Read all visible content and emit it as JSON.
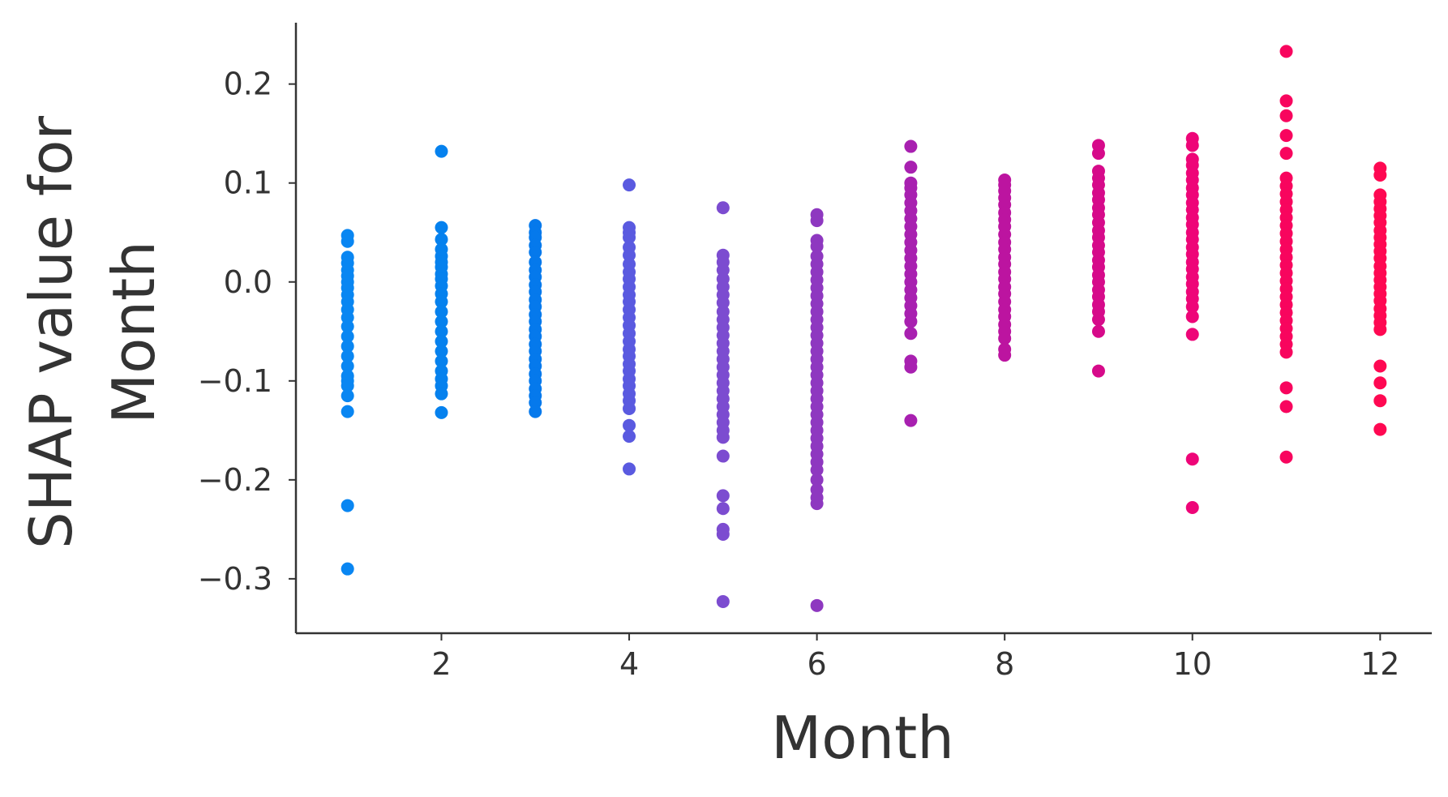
{
  "chart_data": {
    "type": "scatter",
    "title": "",
    "xlabel": "Month",
    "ylabel_lines": [
      "SHAP value for",
      "Month"
    ],
    "xlim": [
      0.45,
      12.55
    ],
    "ylim": [
      -0.355,
      0.262
    ],
    "xticks": [
      2,
      4,
      6,
      8,
      10,
      12
    ],
    "xtick_labels": [
      "2",
      "4",
      "6",
      "8",
      "10",
      "12"
    ],
    "yticks": [
      -0.3,
      -0.2,
      -0.1,
      0.0,
      0.1,
      0.2
    ],
    "ytick_labels": [
      "−0.3",
      "−0.2",
      "−0.1",
      "0.0",
      "0.1",
      "0.2"
    ],
    "grid": false,
    "color_scale": [
      "#008bfb",
      "#ff0052"
    ],
    "month_colors": {
      "1": "#0986f2",
      "2": "#0581ee",
      "3": "#0579ec",
      "4": "#5a5ae0",
      "5": "#7c4cd0",
      "6": "#8e38c0",
      "7": "#a820b0",
      "8": "#bc14a0",
      "9": "#d60a8a",
      "10": "#ee0578",
      "11": "#f8055e",
      "12": "#ff0852"
    },
    "series": [
      {
        "x": 1,
        "y": [
          0.047,
          0.041,
          0.025,
          0.019,
          0.012,
          0.006,
          0.0,
          -0.006,
          -0.013,
          -0.02,
          -0.028,
          -0.036,
          -0.045,
          -0.055,
          -0.065,
          -0.075,
          -0.085,
          -0.095,
          -0.1,
          -0.105,
          -0.115,
          -0.131,
          -0.226,
          -0.29
        ]
      },
      {
        "x": 2,
        "y": [
          0.132,
          0.055,
          0.043,
          0.033,
          0.026,
          0.02,
          0.015,
          0.008,
          0.003,
          -0.004,
          -0.012,
          -0.02,
          -0.03,
          -0.04,
          -0.05,
          -0.06,
          -0.07,
          -0.08,
          -0.09,
          -0.098,
          -0.105,
          -0.113,
          -0.132
        ]
      },
      {
        "x": 3,
        "y": [
          0.057,
          0.05,
          0.045,
          0.037,
          0.03,
          0.02,
          0.012,
          0.005,
          -0.003,
          -0.01,
          -0.018,
          -0.025,
          -0.033,
          -0.04,
          -0.048,
          -0.055,
          -0.063,
          -0.07,
          -0.078,
          -0.085,
          -0.093,
          -0.1,
          -0.108,
          -0.115,
          -0.122,
          -0.131
        ]
      },
      {
        "x": 4,
        "y": [
          0.098,
          0.055,
          0.05,
          0.045,
          0.035,
          0.027,
          0.018,
          0.01,
          0.003,
          -0.005,
          -0.013,
          -0.02,
          -0.028,
          -0.036,
          -0.044,
          -0.052,
          -0.06,
          -0.068,
          -0.075,
          -0.083,
          -0.09,
          -0.098,
          -0.105,
          -0.113,
          -0.12,
          -0.128,
          -0.145,
          -0.156,
          -0.189
        ]
      },
      {
        "x": 5,
        "y": [
          0.075,
          0.027,
          0.02,
          0.012,
          0.003,
          -0.005,
          -0.013,
          -0.021,
          -0.03,
          -0.038,
          -0.046,
          -0.054,
          -0.062,
          -0.07,
          -0.078,
          -0.086,
          -0.094,
          -0.102,
          -0.11,
          -0.118,
          -0.126,
          -0.134,
          -0.142,
          -0.15,
          -0.157,
          -0.176,
          -0.216,
          -0.229,
          -0.25,
          -0.255,
          -0.323
        ]
      },
      {
        "x": 6,
        "y": [
          0.068,
          0.062,
          0.042,
          0.036,
          0.026,
          0.018,
          0.01,
          0.002,
          -0.006,
          -0.014,
          -0.022,
          -0.03,
          -0.038,
          -0.046,
          -0.054,
          -0.062,
          -0.07,
          -0.078,
          -0.086,
          -0.094,
          -0.102,
          -0.11,
          -0.118,
          -0.126,
          -0.134,
          -0.142,
          -0.15,
          -0.158,
          -0.166,
          -0.174,
          -0.182,
          -0.19,
          -0.2,
          -0.21,
          -0.218,
          -0.224,
          -0.327
        ]
      },
      {
        "x": 7,
        "y": [
          0.137,
          0.116,
          0.1,
          0.095,
          0.088,
          0.08,
          0.072,
          0.064,
          0.056,
          0.048,
          0.04,
          0.032,
          0.024,
          0.016,
          0.008,
          0.0,
          -0.008,
          -0.016,
          -0.024,
          -0.032,
          -0.04,
          -0.052,
          -0.08,
          -0.086,
          -0.14
        ]
      },
      {
        "x": 8,
        "y": [
          0.103,
          0.098,
          0.092,
          0.085,
          0.078,
          0.07,
          0.063,
          0.056,
          0.048,
          0.04,
          0.033,
          0.025,
          0.018,
          0.01,
          0.003,
          -0.005,
          -0.012,
          -0.02,
          -0.028,
          -0.035,
          -0.043,
          -0.05,
          -0.057,
          -0.068,
          -0.074
        ]
      },
      {
        "x": 9,
        "y": [
          0.138,
          0.13,
          0.112,
          0.105,
          0.098,
          0.09,
          0.083,
          0.075,
          0.068,
          0.06,
          0.052,
          0.045,
          0.037,
          0.03,
          0.022,
          0.015,
          0.007,
          0.0,
          -0.008,
          -0.015,
          -0.023,
          -0.03,
          -0.038,
          -0.05,
          -0.09
        ]
      },
      {
        "x": 10,
        "y": [
          0.145,
          0.138,
          0.124,
          0.118,
          0.11,
          0.103,
          0.095,
          0.088,
          0.08,
          0.073,
          0.065,
          0.058,
          0.05,
          0.043,
          0.035,
          0.028,
          0.02,
          0.013,
          0.005,
          -0.002,
          -0.01,
          -0.017,
          -0.025,
          -0.035,
          -0.053,
          -0.179,
          -0.228
        ]
      },
      {
        "x": 11,
        "y": [
          0.233,
          0.183,
          0.168,
          0.148,
          0.13,
          0.105,
          0.097,
          0.089,
          0.081,
          0.073,
          0.065,
          0.057,
          0.049,
          0.041,
          0.033,
          0.025,
          0.017,
          0.009,
          0.001,
          -0.007,
          -0.015,
          -0.023,
          -0.031,
          -0.039,
          -0.047,
          -0.055,
          -0.063,
          -0.071,
          -0.107,
          -0.126,
          -0.177
        ]
      },
      {
        "x": 12,
        "y": [
          0.115,
          0.108,
          0.088,
          0.081,
          0.074,
          0.067,
          0.06,
          0.052,
          0.045,
          0.038,
          0.031,
          0.024,
          0.016,
          0.009,
          0.002,
          -0.005,
          -0.012,
          -0.019,
          -0.027,
          -0.034,
          -0.041,
          -0.048,
          -0.085,
          -0.102,
          -0.12,
          -0.149
        ]
      }
    ]
  }
}
